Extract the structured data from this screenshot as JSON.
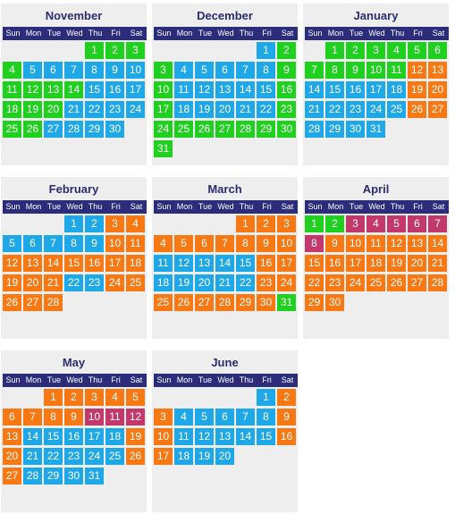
{
  "colors": {
    "green": "#1fd01f",
    "blue": "#1fa8e8",
    "orange": "#f87813",
    "magenta": "#c2386b",
    "header_bg": "#2b2d7a",
    "title_text": "#2b2d6e",
    "panel_bg": "#eeeeee"
  },
  "weekday_labels": [
    "Sun",
    "Mon",
    "Tue",
    "Wed",
    "Thu",
    "Fri",
    "Sat"
  ],
  "months": [
    {
      "name": "November",
      "start_weekday": 4,
      "days": 30,
      "colors": [
        "g",
        "g",
        "g",
        "g",
        "b",
        "b",
        "b",
        "b",
        "b",
        "b",
        "g",
        "g",
        "g",
        "g",
        "b",
        "b",
        "b",
        "g",
        "g",
        "g",
        "b",
        "b",
        "b",
        "b",
        "g",
        "g",
        "b",
        "b",
        "b",
        "b"
      ]
    },
    {
      "name": "December",
      "start_weekday": 5,
      "days": 31,
      "colors": [
        "b",
        "g",
        "g",
        "b",
        "b",
        "b",
        "b",
        "b",
        "g",
        "g",
        "b",
        "b",
        "b",
        "b",
        "b",
        "g",
        "g",
        "b",
        "b",
        "b",
        "b",
        "b",
        "g",
        "g",
        "g",
        "g",
        "g",
        "g",
        "g",
        "g",
        "g"
      ]
    },
    {
      "name": "January",
      "start_weekday": 1,
      "days": 31,
      "colors": [
        "g",
        "g",
        "g",
        "g",
        "g",
        "g",
        "g",
        "g",
        "g",
        "g",
        "g",
        "o",
        "o",
        "b",
        "b",
        "b",
        "b",
        "b",
        "o",
        "o",
        "b",
        "b",
        "b",
        "b",
        "b",
        "o",
        "o",
        "b",
        "b",
        "b",
        "b"
      ]
    },
    {
      "name": "February",
      "start_weekday": 3,
      "days": 28,
      "colors": [
        "b",
        "b",
        "o",
        "o",
        "b",
        "b",
        "b",
        "b",
        "b",
        "o",
        "o",
        "o",
        "o",
        "o",
        "o",
        "o",
        "o",
        "o",
        "o",
        "o",
        "o",
        "b",
        "b",
        "o",
        "o",
        "o",
        "o",
        "o"
      ]
    },
    {
      "name": "March",
      "start_weekday": 4,
      "days": 31,
      "colors": [
        "o",
        "o",
        "o",
        "o",
        "o",
        "o",
        "o",
        "o",
        "o",
        "o",
        "b",
        "b",
        "b",
        "b",
        "b",
        "o",
        "o",
        "b",
        "b",
        "b",
        "b",
        "b",
        "o",
        "o",
        "o",
        "o",
        "o",
        "o",
        "o",
        "o",
        "g"
      ]
    },
    {
      "name": "April",
      "start_weekday": 0,
      "days": 30,
      "colors": [
        "g",
        "g",
        "m",
        "m",
        "m",
        "m",
        "m",
        "m",
        "o",
        "o",
        "o",
        "o",
        "o",
        "o",
        "o",
        "o",
        "o",
        "o",
        "o",
        "o",
        "o",
        "o",
        "o",
        "o",
        "o",
        "o",
        "o",
        "o",
        "o",
        "o"
      ]
    },
    {
      "name": "May",
      "start_weekday": 2,
      "days": 31,
      "colors": [
        "o",
        "o",
        "o",
        "o",
        "o",
        "o",
        "o",
        "o",
        "o",
        "m",
        "m",
        "m",
        "o",
        "b",
        "b",
        "b",
        "b",
        "b",
        "o",
        "o",
        "b",
        "b",
        "b",
        "b",
        "b",
        "o",
        "o",
        "b",
        "b",
        "b",
        "b"
      ]
    },
    {
      "name": "June",
      "start_weekday": 5,
      "days": 20,
      "colors": [
        "b",
        "o",
        "o",
        "b",
        "b",
        "b",
        "b",
        "b",
        "o",
        "o",
        "b",
        "b",
        "b",
        "b",
        "b",
        "o",
        "o",
        "b",
        "b",
        "b"
      ]
    }
  ]
}
